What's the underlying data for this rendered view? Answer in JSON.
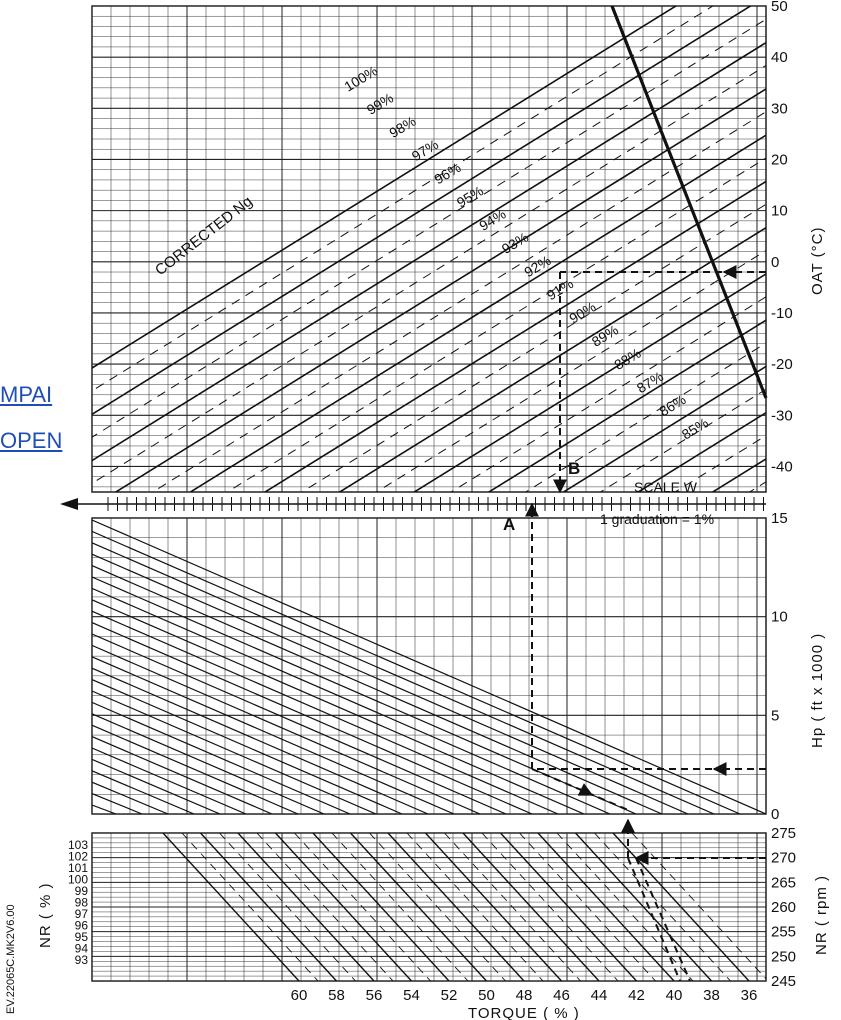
{
  "watermark": {
    "line1": "MPAI",
    "line2": "OPEN",
    "color": "#1f4fb4"
  },
  "chart_data": [
    {
      "type": "line",
      "panel": "top",
      "curve_title": "CORRECTED Ng",
      "ylabel": "OAT (°C)",
      "ylim": [
        -45,
        50
      ],
      "yticks": [
        50,
        40,
        30,
        20,
        10,
        0,
        -10,
        -20,
        -30,
        -40
      ],
      "series": [
        {
          "name": "100%",
          "value": 100
        },
        {
          "name": "99%",
          "value": 99
        },
        {
          "name": "98%",
          "value": 98
        },
        {
          "name": "97%",
          "value": 97
        },
        {
          "name": "96%",
          "value": 96
        },
        {
          "name": "95%",
          "value": 95
        },
        {
          "name": "94%",
          "value": 94
        },
        {
          "name": "93%",
          "value": 93
        },
        {
          "name": "92%",
          "value": 92
        },
        {
          "name": "91%",
          "value": 91
        },
        {
          "name": "90%",
          "value": 90
        },
        {
          "name": "89%",
          "value": 89
        },
        {
          "name": "88%",
          "value": 88
        },
        {
          "name": "87%",
          "value": 87
        },
        {
          "name": "86%",
          "value": 86
        },
        {
          "name": "85%",
          "value": 85
        }
      ],
      "scale_label": "SCALE W",
      "graduation_note": "1 graduation = 1%",
      "markers": [
        "A",
        "B"
      ],
      "example_oat": -2
    },
    {
      "type": "line",
      "panel": "middle",
      "ylabel": "Hp ( ft x 1000 )",
      "ylim": [
        0,
        15
      ],
      "yticks": [
        15,
        10,
        5,
        0
      ],
      "example_hp": 3
    },
    {
      "type": "line",
      "panel": "bottom",
      "xlabel": "TORQUE ( % )",
      "xticks": [
        60,
        58,
        56,
        54,
        52,
        50,
        48,
        46,
        44,
        42,
        40,
        38,
        36
      ],
      "left_ylabel": "NR ( % )",
      "left_yticks": [
        103,
        102,
        101,
        100,
        99,
        98,
        97,
        96,
        95,
        94,
        93
      ],
      "right_ylabel": "NR ( rpm )",
      "right_yticks": [
        275,
        270,
        265,
        260,
        255,
        250,
        245
      ],
      "example_nr_rpm": 270,
      "doc_ref": "EV.22065C.MK2V6.00"
    }
  ]
}
